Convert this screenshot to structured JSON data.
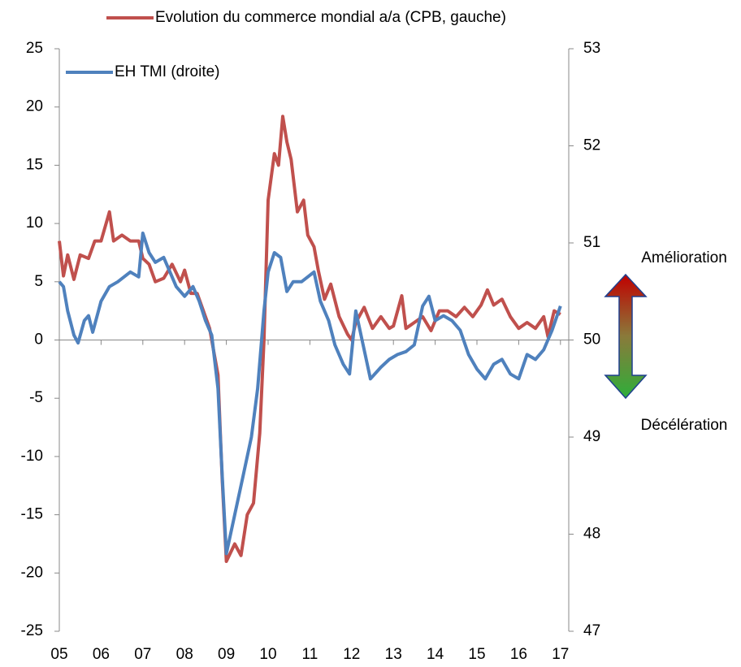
{
  "chart_data": {
    "type": "line",
    "xlim": [
      2005,
      2017.2
    ],
    "xticks": [
      {
        "value": 2005,
        "label": "05"
      },
      {
        "value": 2006,
        "label": "06"
      },
      {
        "value": 2007,
        "label": "07"
      },
      {
        "value": 2008,
        "label": "08"
      },
      {
        "value": 2009,
        "label": "09"
      },
      {
        "value": 2010,
        "label": "10"
      },
      {
        "value": 2011,
        "label": "11"
      },
      {
        "value": 2012,
        "label": "12"
      },
      {
        "value": 2013,
        "label": "13"
      },
      {
        "value": 2014,
        "label": "14"
      },
      {
        "value": 2015,
        "label": "15"
      },
      {
        "value": 2016,
        "label": "16"
      },
      {
        "value": 2017,
        "label": "17"
      }
    ],
    "ylim": [
      -25,
      25
    ],
    "yticks": [
      -25,
      -20,
      -15,
      -10,
      -5,
      0,
      5,
      10,
      15,
      20,
      25
    ],
    "y2lim": [
      47,
      53
    ],
    "y2ticks": [
      47,
      48,
      49,
      50,
      51,
      52,
      53
    ],
    "annotations": [
      "Amélioration",
      "Décélération"
    ],
    "series": [
      {
        "name": "Evolution du commerce mondial a/a (CPB, gauche)",
        "color": "#c0504d",
        "x": [
          2005.0,
          2005.1,
          2005.2,
          2005.35,
          2005.5,
          2005.7,
          2005.85,
          2006.0,
          2006.2,
          2006.3,
          2006.5,
          2006.7,
          2006.9,
          2007.0,
          2007.15,
          2007.3,
          2007.5,
          2007.7,
          2007.9,
          2008.0,
          2008.15,
          2008.3,
          2008.45,
          2008.6,
          2008.8,
          2008.9,
          2009.0,
          2009.2,
          2009.35,
          2009.5,
          2009.65,
          2009.8,
          2009.9,
          2010.0,
          2010.15,
          2010.25,
          2010.35,
          2010.45,
          2010.55,
          2010.7,
          2010.85,
          2010.95,
          2011.1,
          2011.2,
          2011.35,
          2011.5,
          2011.7,
          2011.9,
          2012.0,
          2012.1,
          2012.3,
          2012.5,
          2012.7,
          2012.9,
          2013.0,
          2013.2,
          2013.3,
          2013.5,
          2013.7,
          2013.9,
          2014.1,
          2014.3,
          2014.5,
          2014.7,
          2014.9,
          2015.1,
          2015.25,
          2015.4,
          2015.6,
          2015.8,
          2016.0,
          2016.2,
          2016.4,
          2016.6,
          2016.7,
          2016.85,
          2017.0
        ],
        "values": [
          8.5,
          5.5,
          7.3,
          5.2,
          7.3,
          7,
          8.5,
          8.5,
          11,
          8.5,
          9,
          8.5,
          8.5,
          7,
          6.5,
          5,
          5.3,
          6.5,
          5,
          6,
          4,
          4,
          2.5,
          1,
          -3,
          -12,
          -19,
          -17.5,
          -18.5,
          -15,
          -14,
          -8,
          0,
          12,
          16,
          15,
          19.2,
          17,
          15.5,
          11,
          12,
          9,
          8,
          6,
          3.5,
          4.8,
          2,
          0.5,
          0,
          1.5,
          2.8,
          1,
          2,
          1,
          1.2,
          3.8,
          1,
          1.5,
          2,
          0.8,
          2.5,
          2.5,
          2,
          2.8,
          2,
          3,
          4.3,
          3,
          3.5,
          2,
          1,
          1.5,
          1,
          2,
          0.3,
          2.5,
          2.2
        ]
      },
      {
        "name": "EH TMI (droite)",
        "color": "#4f81bd",
        "axis": "y2",
        "x": [
          2005.0,
          2005.1,
          2005.2,
          2005.35,
          2005.45,
          2005.6,
          2005.7,
          2005.8,
          2006.0,
          2006.2,
          2006.4,
          2006.55,
          2006.7,
          2006.9,
          2007.0,
          2007.15,
          2007.3,
          2007.5,
          2007.65,
          2007.8,
          2008.0,
          2008.2,
          2008.35,
          2008.5,
          2008.65,
          2008.8,
          2008.9,
          2009.0,
          2009.2,
          2009.4,
          2009.6,
          2009.75,
          2009.9,
          2010.0,
          2010.15,
          2010.3,
          2010.45,
          2010.6,
          2010.8,
          2010.95,
          2011.1,
          2011.25,
          2011.45,
          2011.6,
          2011.8,
          2011.95,
          2012.1,
          2012.3,
          2012.45,
          2012.7,
          2012.9,
          2013.1,
          2013.3,
          2013.5,
          2013.7,
          2013.85,
          2014.0,
          2014.2,
          2014.4,
          2014.6,
          2014.8,
          2015.0,
          2015.2,
          2015.4,
          2015.6,
          2015.8,
          2016.0,
          2016.2,
          2016.4,
          2016.6,
          2016.8,
          2017.0
        ],
        "values": [
          50.6,
          50.55,
          50.3,
          50.05,
          49.97,
          50.2,
          50.25,
          50.08,
          50.4,
          50.55,
          50.6,
          50.65,
          50.7,
          50.65,
          51.1,
          50.9,
          50.8,
          50.85,
          50.7,
          50.55,
          50.45,
          50.55,
          50.4,
          50.2,
          50.05,
          49.5,
          48.6,
          47.8,
          48.2,
          48.6,
          49.0,
          49.5,
          50.3,
          50.7,
          50.9,
          50.85,
          50.5,
          50.6,
          50.6,
          50.65,
          50.7,
          50.4,
          50.2,
          49.95,
          49.75,
          49.65,
          50.3,
          49.9,
          49.6,
          49.72,
          49.8,
          49.85,
          49.88,
          49.95,
          50.35,
          50.45,
          50.2,
          50.25,
          50.2,
          50.1,
          49.85,
          49.7,
          49.6,
          49.75,
          49.8,
          49.65,
          49.6,
          49.85,
          49.8,
          49.9,
          50.1,
          50.35
        ]
      }
    ]
  }
}
